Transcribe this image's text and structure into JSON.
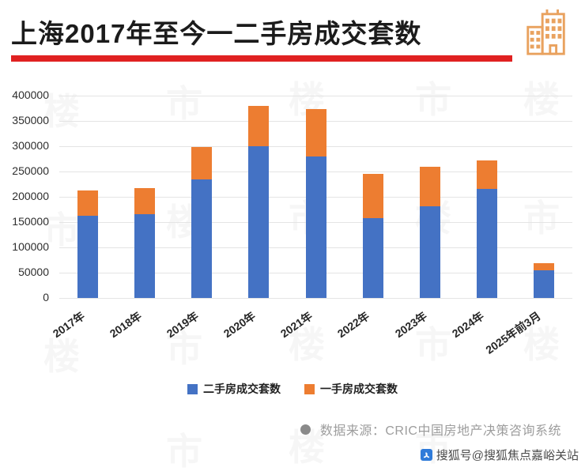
{
  "header": {
    "title": "上海2017年至今一二手房成交套数",
    "underline_color": "#e02121",
    "icon_color": "#e9a25f"
  },
  "chart_data": {
    "type": "bar",
    "stacked": true,
    "categories": [
      "2017年",
      "2018年",
      "2019年",
      "2020年",
      "2021年",
      "2022年",
      "2023年",
      "2024年",
      "2025年前3月"
    ],
    "series": [
      {
        "name": "二手房成交套数",
        "color": "#4472c4",
        "values": [
          163000,
          165000,
          235000,
          300000,
          280000,
          158000,
          181000,
          216000,
          55000
        ]
      },
      {
        "name": "一手房成交套数",
        "color": "#ed7d31",
        "values": [
          50000,
          52000,
          63000,
          79000,
          93000,
          88000,
          78000,
          56000,
          14000
        ]
      }
    ],
    "title": "上海2017年至今一二手房成交套数",
    "xlabel": "",
    "ylabel": "",
    "ylim": [
      0,
      400000
    ],
    "ytick_step": 50000,
    "yticks": [
      "400000",
      "350000",
      "300000",
      "250000",
      "200000",
      "150000",
      "100000",
      "50000",
      "0"
    ],
    "grid": true,
    "legend_position": "bottom"
  },
  "footer": {
    "source_text": "数据来源：CRIC中国房地产决策咨询系统",
    "credit_text": "搜狐号@搜狐焦点嘉峪关站"
  },
  "watermark": {
    "text": "楼市"
  }
}
